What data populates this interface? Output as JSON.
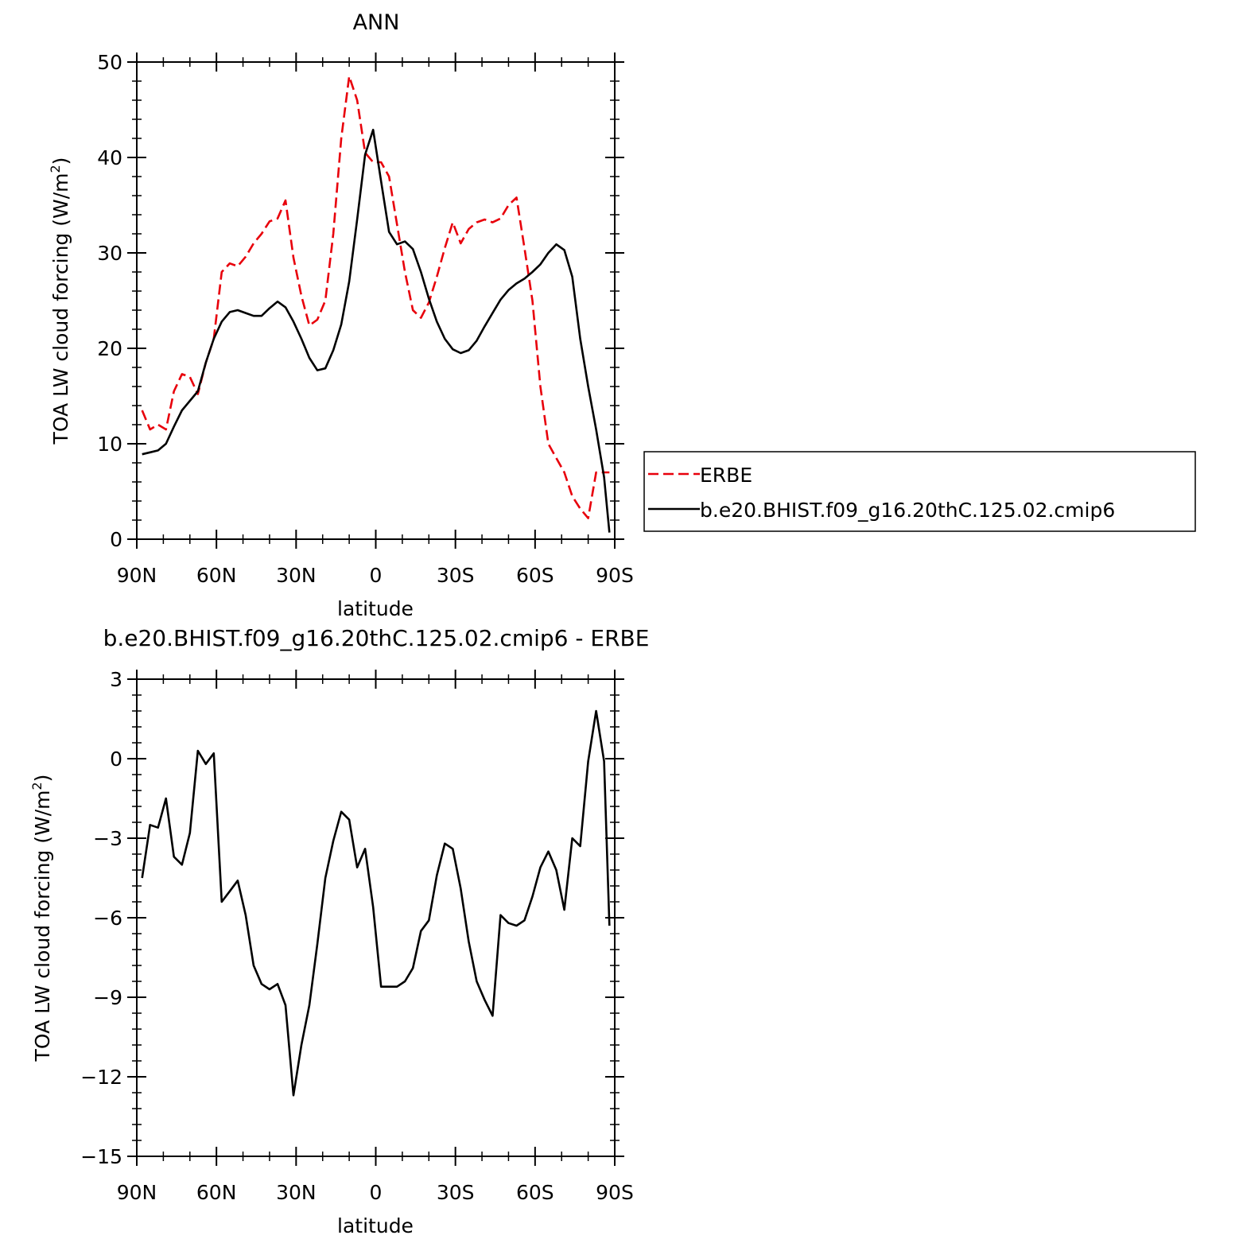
{
  "chart_data": [
    {
      "type": "line",
      "title": "ANN",
      "xlabel": "latitude",
      "ylabel": "TOA LW cloud forcing (W/m",
      "ylabel_sup": "2",
      "ylabel_close": ")",
      "xlim": [
        90,
        -90
      ],
      "ylim": [
        0,
        50
      ],
      "yticks": [
        0,
        10,
        20,
        30,
        40,
        50
      ],
      "xticks": [
        {
          "value": 90,
          "label": "90N"
        },
        {
          "value": 60,
          "label": "60N"
        },
        {
          "value": 30,
          "label": "30N"
        },
        {
          "value": 0,
          "label": "0"
        },
        {
          "value": -30,
          "label": "30S"
        },
        {
          "value": -60,
          "label": "60S"
        },
        {
          "value": -90,
          "label": "90S"
        }
      ],
      "legend": {
        "placement": "right",
        "entries": [
          "ERBE",
          "b.e20.BHIST.f09_g16.20thC.125.02.cmip6"
        ]
      },
      "series": [
        {
          "name": "ERBE",
          "color": "#e8000b",
          "dash": "dashed",
          "x": [
            88,
            85,
            82,
            79,
            76,
            73,
            70,
            67,
            64,
            61,
            58,
            55,
            52,
            49,
            46,
            43,
            40,
            37,
            34,
            31,
            28,
            25,
            22,
            19,
            16,
            13,
            10,
            7,
            4,
            1,
            -2,
            -5,
            -8,
            -11,
            -14,
            -17,
            -20,
            -23,
            -26,
            -29,
            -32,
            -35,
            -38,
            -41,
            -44,
            -47,
            -50,
            -53,
            -56,
            -59,
            -62,
            -65,
            -68,
            -71,
            -74,
            -77,
            -80,
            -83,
            -86,
            -88
          ],
          "y": [
            13.5,
            11.5,
            12.0,
            11.5,
            15.5,
            17.3,
            17.0,
            15.2,
            18.5,
            21.0,
            28.0,
            28.9,
            28.6,
            29.6,
            31.0,
            32.0,
            33.3,
            33.6,
            35.5,
            29.5,
            25.5,
            22.4,
            23.0,
            25.0,
            32.0,
            42.0,
            48.5,
            46.0,
            40.5,
            39.5,
            39.5,
            38.0,
            33.0,
            28.0,
            24.0,
            23.2,
            24.8,
            27.5,
            30.5,
            33.2,
            31.0,
            32.5,
            33.2,
            33.5,
            33.2,
            33.6,
            35.0,
            35.8,
            30.5,
            25.0,
            16.0,
            10.0,
            8.5,
            7.0,
            4.5,
            3.2,
            2.2,
            7.0,
            7.0,
            7.0
          ]
        },
        {
          "name": "b.e20.BHIST.f09_g16.20thC.125.02.cmip6",
          "color": "#000000",
          "dash": "solid",
          "x": [
            88,
            85,
            82,
            79,
            76,
            73,
            70,
            67,
            64,
            61,
            58,
            55,
            52,
            49,
            46,
            43,
            40,
            37,
            34,
            31,
            28,
            25,
            22,
            19,
            16,
            13,
            10,
            7,
            4,
            1,
            -2,
            -5,
            -8,
            -11,
            -14,
            -17,
            -20,
            -23,
            -26,
            -29,
            -32,
            -35,
            -38,
            -41,
            -44,
            -47,
            -50,
            -53,
            -56,
            -59,
            -62,
            -65,
            -68,
            -71,
            -74,
            -77,
            -80,
            -83,
            -86,
            -88
          ],
          "y": [
            8.9,
            9.1,
            9.3,
            10.0,
            11.8,
            13.5,
            14.5,
            15.5,
            18.5,
            21.0,
            22.8,
            23.8,
            24.0,
            23.7,
            23.4,
            23.4,
            24.2,
            24.9,
            24.3,
            22.8,
            21.0,
            19.0,
            17.7,
            17.9,
            19.8,
            22.5,
            27.0,
            33.5,
            40.3,
            42.9,
            37.5,
            32.2,
            30.9,
            31.2,
            30.4,
            28.0,
            25.2,
            22.8,
            21.0,
            19.9,
            19.5,
            19.8,
            20.8,
            22.3,
            23.7,
            25.1,
            26.1,
            26.8,
            27.3,
            28.0,
            28.8,
            30.0,
            30.9,
            30.3,
            27.5,
            21.0,
            16.0,
            11.5,
            6.5,
            0.7
          ]
        }
      ]
    },
    {
      "type": "line",
      "title": "b.e20.BHIST.f09_g16.20thC.125.02.cmip6 - ERBE",
      "xlabel": "latitude",
      "ylabel": "TOA LW cloud forcing (W/m",
      "ylabel_sup": "2",
      "ylabel_close": ")",
      "xlim": [
        90,
        -90
      ],
      "ylim": [
        -15,
        3
      ],
      "yticks": [
        -15,
        -12,
        -9,
        -6,
        -3,
        0,
        3
      ],
      "ytick_labels": [
        "−15",
        "−12",
        "−9",
        "−6",
        "−3",
        "0",
        "3"
      ],
      "xticks": [
        {
          "value": 90,
          "label": "90N"
        },
        {
          "value": 60,
          "label": "60N"
        },
        {
          "value": 30,
          "label": "30N"
        },
        {
          "value": 0,
          "label": "0"
        },
        {
          "value": -30,
          "label": "30S"
        },
        {
          "value": -60,
          "label": "60S"
        },
        {
          "value": -90,
          "label": "90S"
        }
      ],
      "series": [
        {
          "color": "#000000",
          "dash": "solid",
          "x": [
            88,
            85,
            82,
            79,
            76,
            73,
            70,
            67,
            64,
            61,
            58,
            55,
            52,
            49,
            46,
            43,
            40,
            37,
            34,
            31,
            28,
            25,
            22,
            19,
            16,
            13,
            10,
            7,
            4,
            1,
            -2,
            -5,
            -8,
            -11,
            -14,
            -17,
            -20,
            -23,
            -26,
            -29,
            -32,
            -35,
            -38,
            -41,
            -44,
            -47,
            -50,
            -53,
            -56,
            -59,
            -62,
            -65,
            -68,
            -71,
            -74,
            -77,
            -80,
            -83,
            -86,
            -88
          ],
          "y": [
            -4.5,
            -2.5,
            -2.6,
            -1.5,
            -3.7,
            -4.0,
            -2.8,
            0.3,
            -0.2,
            0.2,
            -5.4,
            -5.0,
            -4.6,
            -5.9,
            -7.8,
            -8.5,
            -8.7,
            -8.5,
            -9.3,
            -12.7,
            -10.8,
            -9.3,
            -7.0,
            -4.5,
            -3.1,
            -2.0,
            -2.3,
            -4.1,
            -3.4,
            -5.6,
            -8.6,
            -8.6,
            -8.6,
            -8.4,
            -7.9,
            -6.5,
            -6.1,
            -4.4,
            -3.2,
            -3.4,
            -4.9,
            -6.9,
            -8.4,
            -9.1,
            -9.7,
            -5.9,
            -6.2,
            -6.3,
            -6.1,
            -5.2,
            -4.1,
            -3.5,
            -4.2,
            -5.7,
            -3.0,
            -3.3,
            -0.1,
            1.8,
            -0.1,
            -6.3
          ]
        }
      ]
    }
  ]
}
